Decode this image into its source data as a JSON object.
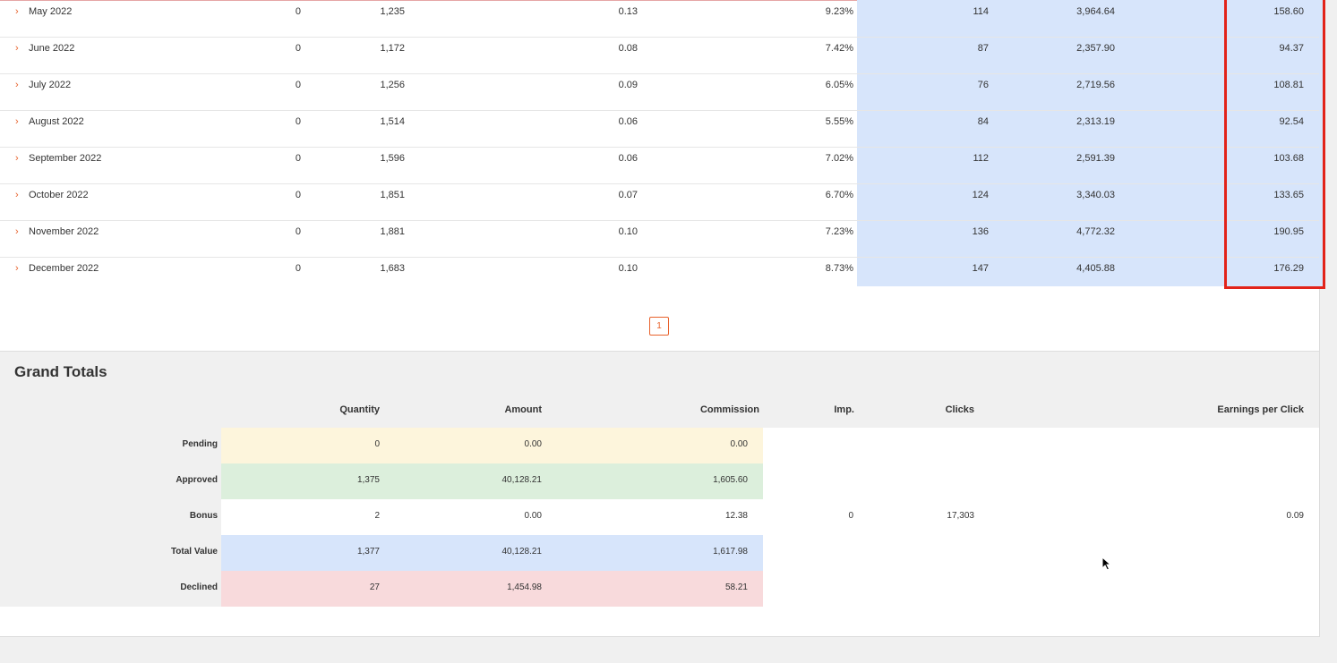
{
  "monthly_rows": [
    {
      "month": "May 2022",
      "c1": "0",
      "c2": "1,235",
      "c3": "0.13",
      "c4": "9.23%",
      "c5": "114",
      "c6": "3,964.64",
      "c7": "158.60"
    },
    {
      "month": "June 2022",
      "c1": "0",
      "c2": "1,172",
      "c3": "0.08",
      "c4": "7.42%",
      "c5": "87",
      "c6": "2,357.90",
      "c7": "94.37"
    },
    {
      "month": "July 2022",
      "c1": "0",
      "c2": "1,256",
      "c3": "0.09",
      "c4": "6.05%",
      "c5": "76",
      "c6": "2,719.56",
      "c7": "108.81"
    },
    {
      "month": "August 2022",
      "c1": "0",
      "c2": "1,514",
      "c3": "0.06",
      "c4": "5.55%",
      "c5": "84",
      "c6": "2,313.19",
      "c7": "92.54"
    },
    {
      "month": "September 2022",
      "c1": "0",
      "c2": "1,596",
      "c3": "0.06",
      "c4": "7.02%",
      "c5": "112",
      "c6": "2,591.39",
      "c7": "103.68"
    },
    {
      "month": "October 2022",
      "c1": "0",
      "c2": "1,851",
      "c3": "0.07",
      "c4": "6.70%",
      "c5": "124",
      "c6": "3,340.03",
      "c7": "133.65"
    },
    {
      "month": "November 2022",
      "c1": "0",
      "c2": "1,881",
      "c3": "0.10",
      "c4": "7.23%",
      "c5": "136",
      "c6": "4,772.32",
      "c7": "190.95"
    },
    {
      "month": "December 2022",
      "c1": "0",
      "c2": "1,683",
      "c3": "0.10",
      "c4": "8.73%",
      "c5": "147",
      "c6": "4,405.88",
      "c7": "176.29"
    }
  ],
  "pagination": {
    "current": "1"
  },
  "grand_totals": {
    "title": "Grand Totals",
    "columns": {
      "quantity": "Quantity",
      "amount": "Amount",
      "commission": "Commission",
      "imp": "Imp.",
      "clicks": "Clicks",
      "epc": "Earnings per Click"
    },
    "rows": [
      {
        "label": "Pending",
        "quantity": "0",
        "amount": "0.00",
        "commission": "0.00",
        "color": "#fdf5dc"
      },
      {
        "label": "Approved",
        "quantity": "1,375",
        "amount": "40,128.21",
        "commission": "1,605.60",
        "color": "#dcefdc"
      },
      {
        "label": "Bonus",
        "quantity": "2",
        "amount": "0.00",
        "commission": "12.38",
        "imp": "0",
        "clicks": "17,303",
        "epc": "0.09",
        "color": "#ffffff"
      },
      {
        "label": "Total Value",
        "quantity": "1,377",
        "amount": "40,128.21",
        "commission": "1,617.98",
        "color": "#d7e5fb"
      },
      {
        "label": "Declined",
        "quantity": "27",
        "amount": "1,454.98",
        "commission": "58.21",
        "color": "#f8dadc"
      }
    ]
  },
  "colors": {
    "accent": "#e8622c",
    "highlight": "#e2231a",
    "blue_band": "#d7e5fb"
  },
  "icons": {
    "row_expand": "chevron-right-icon",
    "cursor": "mouse-pointer-icon"
  }
}
